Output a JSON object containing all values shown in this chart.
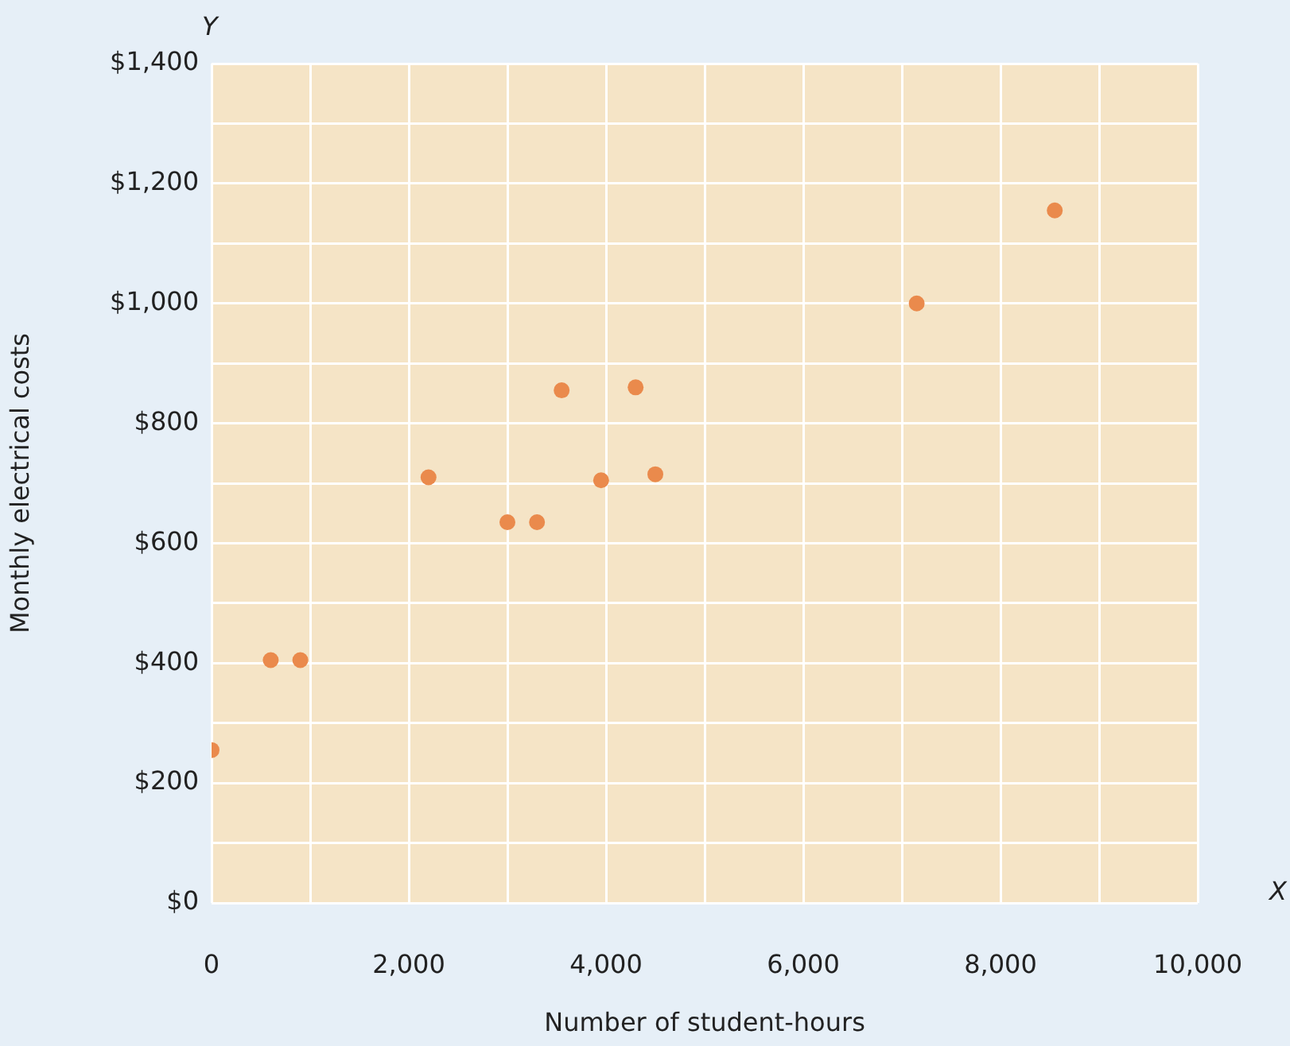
{
  "chart_data": {
    "type": "scatter",
    "xlabel": "Number of student-hours",
    "ylabel": "Monthly electrical costs",
    "annotations": [
      "Y",
      "X"
    ],
    "x": [
      0,
      600,
      900,
      2200,
      3000,
      3300,
      3550,
      3950,
      4300,
      4500,
      7150,
      8550
    ],
    "series": [
      {
        "color": "#ea8a4c",
        "values": [
          255,
          405,
          405,
          710,
          635,
          635,
          855,
          705,
          860,
          715,
          1000,
          1155
        ]
      }
    ],
    "xlim": [
      0,
      10000
    ],
    "xticks": [
      0,
      {
        "value": 1000,
        "label": null
      },
      {
        "value": 2000,
        "label": "2,000"
      },
      {
        "value": 3000,
        "label": null
      },
      {
        "value": 4000,
        "label": "4,000"
      },
      {
        "value": 5000,
        "label": null
      },
      {
        "value": 6000,
        "label": "6,000"
      },
      {
        "value": 7000,
        "label": null
      },
      {
        "value": 8000,
        "label": "8,000"
      },
      {
        "value": 9000,
        "label": null
      },
      {
        "value": 10000,
        "label": "10,000"
      }
    ],
    "ylim": [
      0,
      1400
    ],
    "yticks": [
      {
        "value": 0,
        "label": "$0"
      },
      {
        "value": 100,
        "label": null
      },
      {
        "value": 200,
        "label": "$200"
      },
      {
        "value": 300,
        "label": null
      },
      {
        "value": 400,
        "label": "$400"
      },
      {
        "value": 500,
        "label": null
      },
      {
        "value": 600,
        "label": "$600"
      },
      {
        "value": 700,
        "label": null
      },
      {
        "value": 800,
        "label": "$800"
      },
      {
        "value": 900,
        "label": null
      },
      {
        "value": 1000,
        "label": "$1,000"
      },
      {
        "value": 1100,
        "label": null
      },
      {
        "value": 1200,
        "label": "$1,200"
      },
      {
        "value": 1300,
        "label": null
      },
      {
        "value": 1400,
        "label": "$1,400"
      }
    ],
    "grid": true,
    "marker": "circle",
    "legend": false
  }
}
